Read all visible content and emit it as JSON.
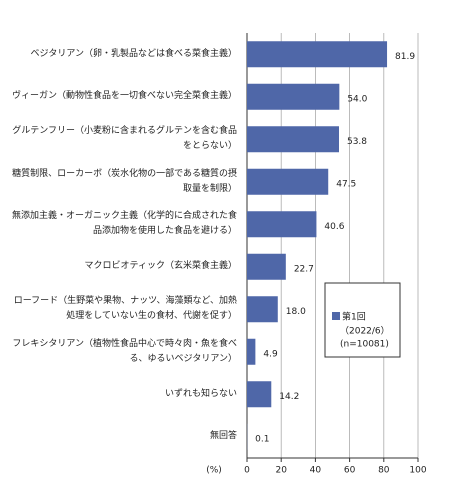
{
  "chart_data": {
    "type": "bar",
    "orientation": "horizontal",
    "categories": [
      "ベジタリアン（卵・乳製品などは食べる菜食主義）",
      "ヴィーガン（動物性食品を一切食べない完全菜食主義）",
      "グルテンフリー（小麦粉に含まれるグルテンを含む食品をとらない）",
      "糖質制限、ローカーボ（炭水化物の一部である糖質の摂取量を制限）",
      "無添加主義・オーガニック主義（化学的に合成された食品添加物を使用した食品を避ける）",
      "マクロビオティック（玄米菜食主義）",
      "ローフード（生野菜や果物、ナッツ、海藻類など、加熱処理をしていない生の食材、代謝を促す）",
      "フレキシタリアン（植物性食品中心で時々肉・魚を食べる、ゆるいベジタリアン）",
      "いずれも知らない",
      "無回答"
    ],
    "series": [
      {
        "name": "第1回",
        "color": "#4f67a8",
        "values": [
          81.9,
          54.0,
          53.8,
          47.5,
          40.6,
          22.7,
          18.0,
          4.9,
          14.2,
          0.1
        ],
        "value_labels": [
          "81.9",
          "54.0",
          "53.8",
          "47.5",
          "40.6",
          "22.7",
          "18.0",
          "4.9",
          "14.2",
          "0.1"
        ]
      }
    ],
    "legend_note": [
      "（2022/6）",
      "(n=10081)"
    ],
    "x_label": "(%)",
    "xlim": [
      0,
      100
    ],
    "xticks": [
      0,
      20,
      40,
      60,
      80,
      100
    ],
    "grid": true
  }
}
